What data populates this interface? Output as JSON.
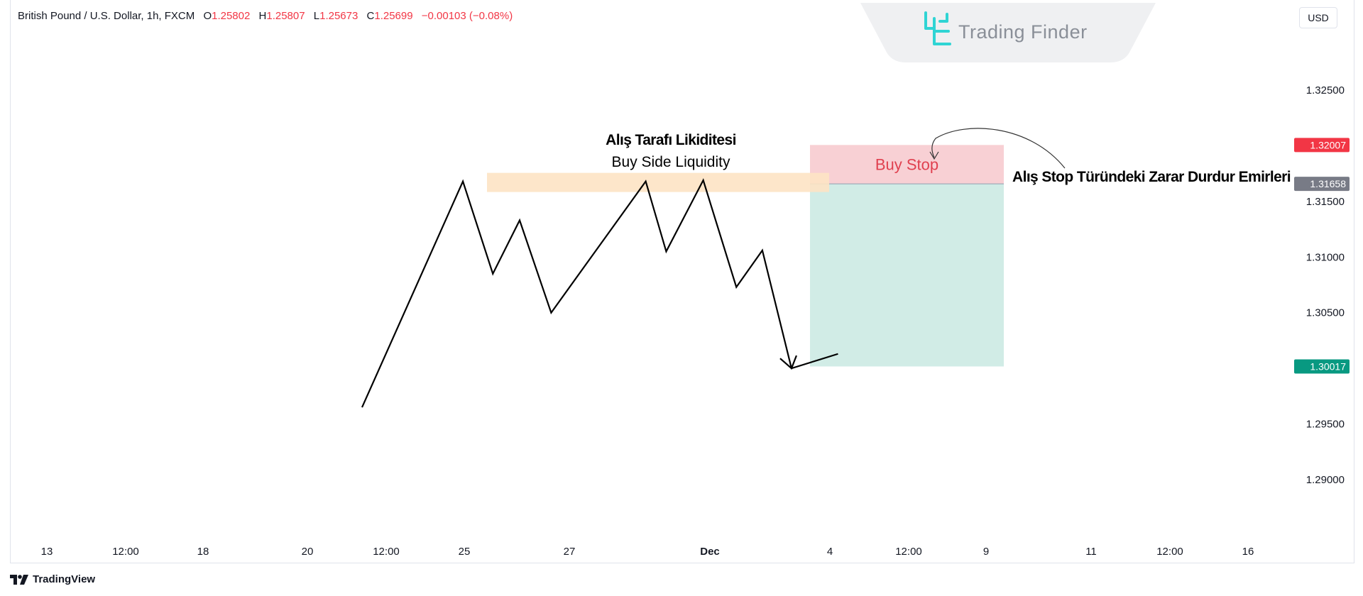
{
  "header": {
    "symbol": "British Pound / U.S. Dollar, 1h, FXCM",
    "open_label": "O",
    "open": "1.25802",
    "high_label": "H",
    "high": "1.25807",
    "low_label": "L",
    "low": "1.25673",
    "close_label": "C",
    "close": "1.25699",
    "change": "−0.00103 (−0.08%)"
  },
  "currency_button": "USD",
  "watermark": {
    "text": "Trading Finder",
    "icon": "trading-finder-logo-icon",
    "color": "#2fd4d4"
  },
  "footer": {
    "brand": "TradingView",
    "icon": "tradingview-logo-icon"
  },
  "colors": {
    "text": "#131722",
    "negative": "#f23645",
    "stop_zone": "#f8d0d4",
    "target_zone": "#d1ece6",
    "liquidity_band": "#fde3c4",
    "tag_red": "#f23645",
    "tag_gray": "#787b86",
    "tag_green": "#089981"
  },
  "chart_data": {
    "type": "line",
    "title": "",
    "xlabel": "",
    "ylabel": "",
    "ylim": [
      1.2855,
      1.3345
    ],
    "y_ticks": [
      "1.32500",
      "1.31500",
      "1.31000",
      "1.30500",
      "1.29500",
      "1.29000"
    ],
    "y_tick_values": [
      1.325,
      1.315,
      1.31,
      1.305,
      1.295,
      1.29
    ],
    "x_ticks": [
      "13",
      "12:00",
      "18",
      "20",
      "12:00",
      "25",
      "27",
      "Dec",
      "4",
      "12:00",
      "9",
      "11",
      "12:00",
      "16"
    ],
    "x_tick_index": [
      0,
      1,
      2,
      3,
      4,
      5,
      6,
      7,
      8,
      9,
      10,
      11,
      12,
      13
    ],
    "series": [
      {
        "x_index": [
          4.0,
          5.28,
          5.66,
          6.0,
          6.4,
          7.6,
          7.86,
          8.33,
          8.75,
          9.08,
          9.45,
          10.04
        ],
        "values": [
          1.2965,
          1.3168,
          1.3085,
          1.3133,
          1.305,
          1.3168,
          1.3105,
          1.3169,
          1.3073,
          1.3106,
          1.3,
          1.3013
        ]
      }
    ],
    "annotations": {
      "liquidity_title_tr": "Alış Tarafı Likiditesi",
      "liquidity_title_en": "Buy Side Liquidity",
      "liquidity_level": 1.3168,
      "buy_stop_label": "Buy Stop",
      "stop_orders_label": "Alış Stop Türündeki Zarar Durdur Emirleri"
    },
    "position": {
      "stop": 1.32007,
      "entry": 1.31658,
      "target": 1.30017,
      "stop_label": "1.32007",
      "entry_label": "1.31658",
      "target_label": "1.30017"
    }
  }
}
